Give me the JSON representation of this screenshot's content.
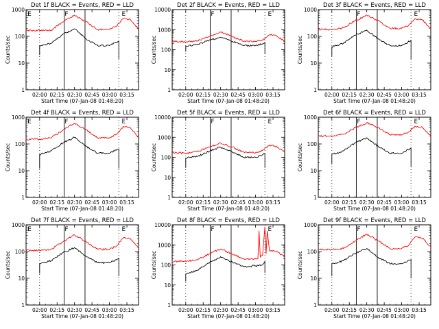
{
  "chart_data": [
    {
      "type": "line",
      "title": "Det 1f BLACK = Events, RED = LLD",
      "xlabel": "Start Time (07-Jan-08 01:48:20)",
      "ylabel": "Counts/sec",
      "yscale": "log",
      "ylim": [
        1,
        1000
      ],
      "ytick_labels": [
        "1",
        "10",
        "100",
        "1000"
      ],
      "xtick_labels": [
        "02:00",
        "02:15",
        "02:30",
        "02:45",
        "03:00",
        "03:15"
      ],
      "x_range": [
        "01:48:20",
        "03:25"
      ],
      "markers": [
        "E",
        "F",
        "E"
      ],
      "series": [
        {
          "color": "#ff0000",
          "x": [
            "01:48",
            "02:00",
            "02:10",
            "02:20",
            "02:30",
            "02:40",
            "02:50",
            "03:00",
            "03:06",
            "03:12",
            "03:18",
            "03:25"
          ],
          "y": [
            165,
            165,
            170,
            350,
            620,
            350,
            180,
            180,
            240,
            470,
            420,
            190
          ]
        },
        {
          "color": "#000000",
          "x": [
            "02:00",
            "02:00",
            "02:10",
            "02:20",
            "02:30",
            "02:40",
            "02:50",
            "03:00",
            "03:08",
            "03:08"
          ],
          "y": [
            20,
            45,
            55,
            120,
            190,
            80,
            45,
            45,
            65,
            14
          ]
        }
      ]
    },
    {
      "type": "line",
      "title": "Det 2f BLACK = Events, RED = LLD",
      "xlabel": "Start Time (07-Jan-08 01:48:20)",
      "ylabel": "Counts/sec",
      "yscale": "log",
      "ylim": [
        1,
        10000
      ],
      "ytick_labels": [
        "1",
        "10",
        "100",
        "1000",
        "10000"
      ],
      "xtick_labels": [
        "02:00",
        "02:15",
        "02:30",
        "02:45",
        "03:00",
        "03:15"
      ],
      "x_range": [
        "01:48:20",
        "03:25"
      ],
      "markers": [
        "F",
        "E"
      ],
      "series": [
        {
          "color": "#ff0000",
          "x": [
            "01:48",
            "02:00",
            "02:10",
            "02:20",
            "02:30",
            "02:40",
            "02:50",
            "03:00",
            "03:06",
            "03:12",
            "03:18",
            "03:25"
          ],
          "y": [
            260,
            240,
            280,
            450,
            750,
            450,
            270,
            260,
            300,
            560,
            500,
            260
          ]
        },
        {
          "color": "#000000",
          "x": [
            "02:00",
            "02:00",
            "02:10",
            "02:20",
            "02:30",
            "02:40",
            "02:50",
            "03:00",
            "03:08",
            "03:08"
          ],
          "y": [
            80,
            150,
            180,
            300,
            420,
            260,
            160,
            160,
            230,
            60
          ]
        }
      ]
    },
    {
      "type": "line",
      "title": "Det 3f BLACK = Events, RED = LLD",
      "xlabel": "Start Time (07-Jan-08 01:48:20)",
      "ylabel": "Counts/sec",
      "yscale": "log",
      "ylim": [
        1,
        1000
      ],
      "ytick_labels": [
        "1",
        "10",
        "100",
        "1000"
      ],
      "xtick_labels": [
        "02:00",
        "02:15",
        "02:30",
        "02:45",
        "03:00",
        "03:15"
      ],
      "x_range": [
        "01:48:20",
        "03:25"
      ],
      "markers": [
        "F",
        "E"
      ],
      "series": [
        {
          "color": "#ff0000",
          "x": [
            "01:48",
            "02:00",
            "02:10",
            "02:20",
            "02:30",
            "02:40",
            "02:50",
            "03:00",
            "03:06",
            "03:12",
            "03:18",
            "03:25"
          ],
          "y": [
            180,
            180,
            210,
            380,
            620,
            380,
            200,
            200,
            260,
            450,
            400,
            200
          ]
        },
        {
          "color": "#000000",
          "x": [
            "02:00",
            "02:00",
            "02:10",
            "02:20",
            "02:30",
            "02:40",
            "02:50",
            "03:00",
            "03:08",
            "03:08"
          ],
          "y": [
            18,
            40,
            55,
            110,
            170,
            80,
            45,
            45,
            70,
            14
          ]
        }
      ]
    },
    {
      "type": "line",
      "title": "Det 4f BLACK = Events, RED = LLD",
      "xlabel": "Start Time (07-Jan-08 01:48:20)",
      "ylabel": "Counts/sec",
      "yscale": "log",
      "ylim": [
        1,
        1000
      ],
      "ytick_labels": [
        "1",
        "10",
        "100",
        "1000"
      ],
      "xtick_labels": [
        "02:00",
        "02:15",
        "02:30",
        "02:45",
        "03:00",
        "03:15"
      ],
      "x_range": [
        "01:48:20",
        "03:25"
      ],
      "markers": [
        "E",
        "F",
        "E"
      ],
      "series": [
        {
          "color": "#ff0000",
          "x": [
            "01:48",
            "02:00",
            "02:10",
            "02:20",
            "02:30",
            "02:40",
            "02:50",
            "03:00",
            "03:06",
            "03:12",
            "03:18",
            "03:25"
          ],
          "y": [
            150,
            150,
            170,
            330,
            600,
            330,
            170,
            170,
            230,
            450,
            400,
            180
          ]
        },
        {
          "color": "#000000",
          "x": [
            "02:00",
            "02:00",
            "02:10",
            "02:20",
            "02:30",
            "02:40",
            "02:50",
            "03:00",
            "03:08",
            "03:08"
          ],
          "y": [
            12,
            40,
            55,
            110,
            175,
            80,
            45,
            45,
            65,
            12
          ]
        }
      ]
    },
    {
      "type": "line",
      "title": "Det 5f BLACK = Events, RED = LLD",
      "xlabel": "Start Time (07-Jan-08 01:48:20)",
      "ylabel": "Counts/sec",
      "yscale": "log",
      "ylim": [
        1,
        10000
      ],
      "ytick_labels": [
        "1",
        "10",
        "100",
        "1000",
        "10000"
      ],
      "xtick_labels": [
        "02:00",
        "02:15",
        "02:30",
        "02:45",
        "03:00",
        "03:15"
      ],
      "x_range": [
        "01:48:20",
        "03:25"
      ],
      "markers": [
        "F",
        "E"
      ],
      "series": [
        {
          "color": "#ff0000",
          "x": [
            "01:48",
            "02:00",
            "02:10",
            "02:20",
            "02:30",
            "02:40",
            "02:50",
            "03:00",
            "03:06",
            "03:12",
            "03:18",
            "03:25"
          ],
          "y": [
            170,
            160,
            190,
            320,
            520,
            320,
            180,
            170,
            220,
            400,
            360,
            180
          ]
        },
        {
          "color": "#000000",
          "x": [
            "02:00",
            "02:00",
            "02:10",
            "02:20",
            "02:30",
            "02:40",
            "02:50",
            "03:00",
            "03:08",
            "03:08"
          ],
          "y": [
            30,
            90,
            110,
            200,
            320,
            180,
            100,
            100,
            150,
            30
          ]
        }
      ]
    },
    {
      "type": "line",
      "title": "Det 6f BLACK = Events, RED = LLD",
      "xlabel": "Start Time (07-Jan-08 01:48:20)",
      "ylabel": "Counts/sec",
      "yscale": "log",
      "ylim": [
        1,
        1000
      ],
      "ytick_labels": [
        "1",
        "10",
        "100",
        "1000"
      ],
      "xtick_labels": [
        "02:00",
        "02:15",
        "02:30",
        "02:45",
        "03:00",
        "03:15"
      ],
      "x_range": [
        "01:48:20",
        "03:25"
      ],
      "markers": [
        "F",
        "E"
      ],
      "series": [
        {
          "color": "#ff0000",
          "x": [
            "01:48",
            "02:00",
            "02:10",
            "02:20",
            "02:30",
            "02:40",
            "02:50",
            "03:00",
            "03:06",
            "03:12",
            "03:18",
            "03:25"
          ],
          "y": [
            200,
            200,
            230,
            400,
            620,
            400,
            220,
            220,
            280,
            460,
            410,
            200
          ]
        },
        {
          "color": "#000000",
          "x": [
            "02:00",
            "02:00",
            "02:10",
            "02:20",
            "02:30",
            "02:40",
            "02:50",
            "03:00",
            "03:08",
            "03:08"
          ],
          "y": [
            18,
            40,
            55,
            110,
            170,
            80,
            45,
            45,
            70,
            14
          ]
        }
      ]
    },
    {
      "type": "line",
      "title": "Det 7f BLACK = Events, RED = LLD",
      "xlabel": "Start Time (07-Jan-08 01:48:20)",
      "ylabel": "Counts/sec",
      "yscale": "log",
      "ylim": [
        1,
        1000
      ],
      "ytick_labels": [
        "1",
        "10",
        "100",
        "1000"
      ],
      "xtick_labels": [
        "02:00",
        "02:15",
        "02:30",
        "02:45",
        "03:00",
        "03:15"
      ],
      "x_range": [
        "01:48:20",
        "03:25"
      ],
      "markers": [
        "E",
        "F",
        "E"
      ],
      "series": [
        {
          "color": "#ff0000",
          "x": [
            "01:48",
            "02:00",
            "02:10",
            "02:20",
            "02:30",
            "02:40",
            "02:50",
            "03:00",
            "03:06",
            "03:12",
            "03:18",
            "03:25"
          ],
          "y": [
            110,
            110,
            120,
            230,
            420,
            230,
            120,
            120,
            160,
            330,
            300,
            140
          ]
        },
        {
          "color": "#000000",
          "x": [
            "02:00",
            "02:00",
            "02:10",
            "02:20",
            "02:30",
            "02:40",
            "02:50",
            "03:00",
            "03:08",
            "03:08"
          ],
          "y": [
            15,
            35,
            45,
            90,
            140,
            65,
            38,
            38,
            55,
            12
          ]
        }
      ]
    },
    {
      "type": "line",
      "title": "Det 8f BLACK = Events, RED = LLD",
      "xlabel": "Start Time (07-Jan-08 01:48:20)",
      "ylabel": "Counts/sec",
      "yscale": "log",
      "ylim": [
        1,
        10000
      ],
      "ytick_labels": [
        "1",
        "10",
        "100",
        "1000",
        "10000"
      ],
      "xtick_labels": [
        "02:00",
        "02:15",
        "02:30",
        "02:45",
        "03:00",
        "03:15"
      ],
      "x_range": [
        "01:48:20",
        "03:25"
      ],
      "markers": [
        "F",
        "E"
      ],
      "series": [
        {
          "color": "#ff0000",
          "x": [
            "01:48",
            "02:00",
            "02:10",
            "02:20",
            "02:30",
            "02:40",
            "02:50",
            "03:00",
            "03:02",
            "03:03",
            "03:04",
            "03:06",
            "03:08",
            "03:09",
            "03:10",
            "03:12",
            "03:18",
            "03:25"
          ],
          "y": [
            150,
            150,
            180,
            350,
            620,
            350,
            200,
            200,
            210,
            5000,
            250,
            300,
            8000,
            350,
            5000,
            500,
            480,
            250
          ]
        },
        {
          "color": "#000000",
          "x": [
            "02:00",
            "02:00",
            "02:10",
            "02:20",
            "02:30",
            "02:40",
            "02:50",
            "03:00",
            "03:06",
            "03:08",
            "03:08"
          ],
          "y": [
            15,
            35,
            55,
            120,
            260,
            140,
            80,
            90,
            100,
            150,
            40
          ]
        }
      ]
    },
    {
      "type": "line",
      "title": "Det 9f BLACK = Events, RED = LLD",
      "xlabel": "Start Time (07-Jan-08 01:48:20)",
      "ylabel": "Counts/sec",
      "yscale": "log",
      "ylim": [
        1,
        1000
      ],
      "ytick_labels": [
        "1",
        "10",
        "100",
        "1000"
      ],
      "xtick_labels": [
        "02:00",
        "02:15",
        "02:30",
        "02:45",
        "03:00",
        "03:15"
      ],
      "x_range": [
        "01:48:20",
        "03:25"
      ],
      "markers": [
        "F",
        "E"
      ],
      "series": [
        {
          "color": "#ff0000",
          "x": [
            "01:48",
            "02:00",
            "02:10",
            "02:20",
            "02:30",
            "02:40",
            "02:50",
            "03:00",
            "03:06",
            "03:12",
            "03:18",
            "03:25"
          ],
          "y": [
            120,
            120,
            130,
            250,
            450,
            250,
            130,
            130,
            170,
            360,
            320,
            150
          ]
        },
        {
          "color": "#000000",
          "x": [
            "02:00",
            "02:00",
            "02:10",
            "02:20",
            "02:30",
            "02:40",
            "02:50",
            "03:00",
            "03:08",
            "03:08"
          ],
          "y": [
            12,
            35,
            45,
            85,
            130,
            60,
            35,
            35,
            50,
            10
          ]
        }
      ]
    }
  ]
}
